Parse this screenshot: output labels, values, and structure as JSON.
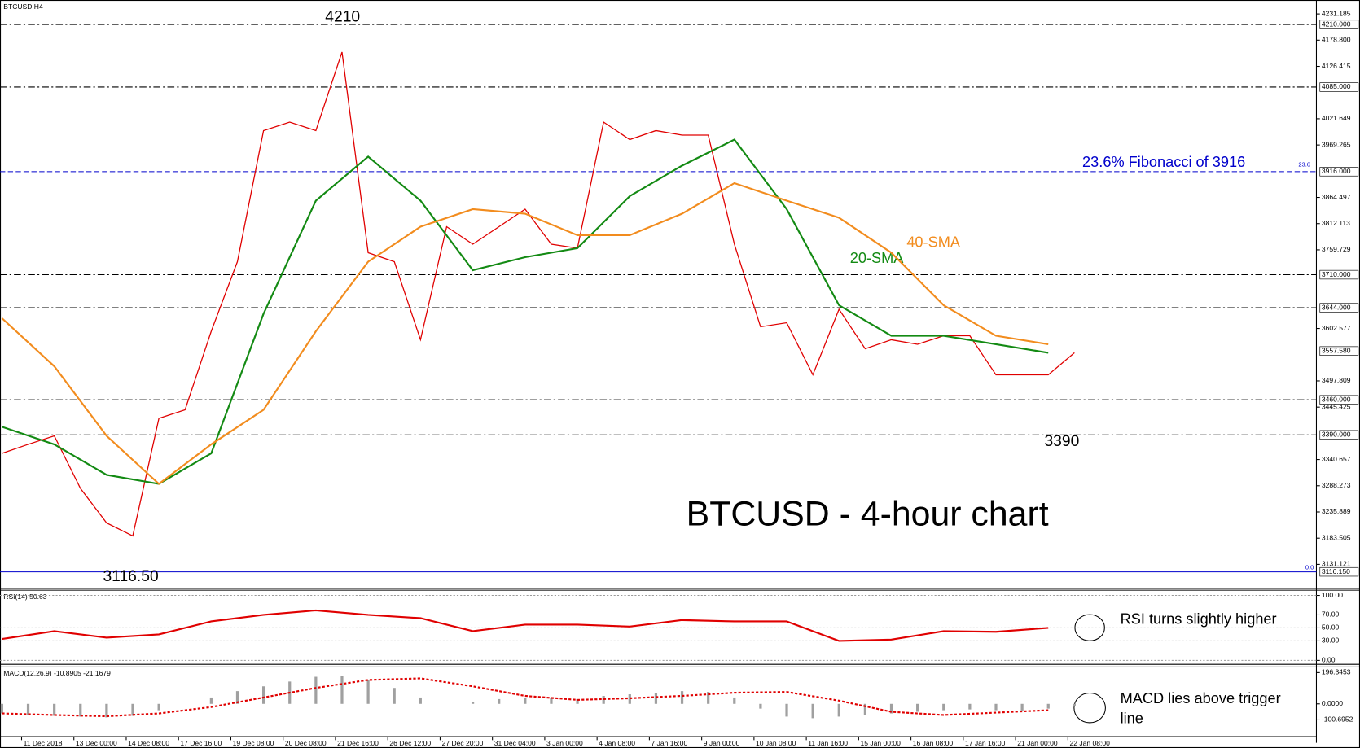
{
  "chart_data": [
    {
      "type": "line",
      "title": "BTCUSD,H4",
      "xlim": [
        -0.3,
        201
      ],
      "ylim": [
        3083,
        4259
      ],
      "yticks": [
        {
          "value": 4231.185,
          "label": "4231.185"
        },
        {
          "value": 4178.8,
          "label": "4178.800"
        },
        {
          "value": 4126.415,
          "label": "4126.415"
        },
        {
          "value": 4021.649,
          "label": "4021.649"
        },
        {
          "value": 3969.265,
          "label": "3969.265"
        },
        {
          "value": 3864.497,
          "label": "3864.497"
        },
        {
          "value": 3812.113,
          "label": "3812.113"
        },
        {
          "value": 3759.729,
          "label": "3759.729"
        },
        {
          "value": 3602.577,
          "label": "3602.577"
        },
        {
          "value": 3497.809,
          "label": "3497.809"
        },
        {
          "value": 3445.425,
          "label": "3445.425"
        },
        {
          "value": 3340.657,
          "label": "3340.657"
        },
        {
          "value": 3288.273,
          "label": "3288.273"
        },
        {
          "value": 3235.889,
          "label": "3235.889"
        },
        {
          "value": 3183.505,
          "label": "3183.505"
        },
        {
          "value": 3131.121,
          "label": "3131.121"
        }
      ],
      "levels": [
        {
          "value": 4210,
          "label": "4210.000",
          "color": "#000000",
          "style": "dashdot"
        },
        {
          "value": 4085,
          "label": "4085.000",
          "color": "#000000",
          "style": "dashdot"
        },
        {
          "value": 3916,
          "label": "3916.000",
          "color": "#0000cc",
          "style": "dash"
        },
        {
          "value": 3710,
          "label": "3710.000",
          "color": "#000000",
          "style": "dashdot"
        },
        {
          "value": 3644,
          "label": "3644.000",
          "color": "#000000",
          "style": "dashdot"
        },
        {
          "value": 3460,
          "label": "3460.000",
          "color": "#000000",
          "style": "dashdot"
        },
        {
          "value": 3390,
          "label": "3390.000",
          "color": "#000000",
          "style": "dashdot"
        },
        {
          "value": 3116.15,
          "label": "3116.150",
          "color": "#0000cc",
          "style": "solid"
        }
      ],
      "current_price": {
        "value": 3557.58,
        "label": "3557.580"
      },
      "annotations": [
        "4210",
        "3116.50",
        "3390",
        "23.6% Fibonacci of 3916",
        "BTCUSD - 4-hour chart",
        "23.6",
        "0.0"
      ],
      "x": [
        0,
        4,
        8,
        12,
        16,
        20,
        24,
        28,
        32,
        36,
        40,
        44,
        48,
        52,
        56,
        60,
        64,
        68,
        72,
        76,
        80,
        84,
        88,
        92,
        96,
        100,
        104,
        108,
        112,
        116,
        120,
        124,
        128,
        132,
        136,
        140,
        144,
        148,
        152,
        156,
        160,
        164
      ],
      "series": [
        {
          "color": "#e00000",
          "values": [
            3353,
            3371,
            3388,
            3283,
            3214,
            3188,
            3423,
            3440,
            3597,
            3736,
            3998,
            4015,
            3998,
            4155,
            3754,
            3736,
            3580,
            3806,
            3771,
            3806,
            3841,
            3771,
            3763,
            4015,
            3980,
            3998,
            3989,
            3989,
            3771,
            3606,
            3614,
            3510,
            3641,
            3562,
            3580,
            3571,
            3588,
            3588,
            3510,
            3510,
            3510,
            3554
          ]
        },
        {
          "name": "20-SMA",
          "color": "#138a13",
          "x": [
            0,
            8,
            16,
            24,
            32,
            40,
            48,
            56,
            64,
            72,
            80,
            88,
            96,
            104,
            112,
            120,
            128,
            136,
            144,
            152,
            160
          ],
          "values": [
            3406,
            3371,
            3310,
            3292,
            3353,
            3632,
            3858,
            3946,
            3858,
            3719,
            3745,
            3763,
            3867,
            3928,
            3980,
            3841,
            3649,
            3588,
            3588,
            3571,
            3554
          ]
        },
        {
          "name": "40-SMA",
          "color": "#f28c1e",
          "x": [
            0,
            8,
            16,
            24,
            32,
            40,
            48,
            56,
            64,
            72,
            80,
            88,
            96,
            104,
            112,
            120,
            128,
            136,
            144,
            152,
            160
          ],
          "values": [
            3623,
            3527,
            3388,
            3292,
            3371,
            3440,
            3597,
            3736,
            3806,
            3841,
            3832,
            3789,
            3789,
            3832,
            3893,
            3858,
            3824,
            3754,
            3649,
            3588,
            3571
          ]
        }
      ]
    },
    {
      "type": "line",
      "title": "RSI(14) 50.63",
      "grid": true,
      "xlim": [
        -0.3,
        201
      ],
      "ylim": [
        -6,
        108
      ],
      "yticks": [
        {
          "value": 100,
          "label": "100.00"
        },
        {
          "value": 70,
          "label": "70.00"
        },
        {
          "value": 50,
          "label": "50.00"
        },
        {
          "value": 30,
          "label": "30.00"
        },
        {
          "value": 0,
          "label": "0.00"
        }
      ],
      "annotations": [
        "RSI turns slightly higher"
      ],
      "x": [
        0,
        8,
        16,
        24,
        32,
        40,
        48,
        56,
        64,
        72,
        80,
        88,
        96,
        104,
        112,
        120,
        128,
        136,
        144,
        152,
        160
      ],
      "series": [
        {
          "color": "#e00000",
          "values": [
            33,
            45,
            35,
            40,
            60,
            70,
            77,
            70,
            65,
            45,
            55,
            55,
            52,
            62,
            60,
            60,
            30,
            32,
            45,
            44,
            50
          ]
        }
      ]
    },
    {
      "type": "bar",
      "title": "MACD(12,26,9) -10.8905 -21.1679",
      "xlim": [
        -0.3,
        201
      ],
      "ylim": [
        -206,
        232
      ],
      "yticks": [
        196.3453,
        {
          "value": 0,
          "label": "0.0000"
        },
        -100.6952
      ],
      "xticks": [
        {
          "value": 3,
          "label": "11 Dec 2018"
        },
        {
          "value": 11,
          "label": "13 Dec 00:00"
        },
        {
          "value": 19,
          "label": "14 Dec 08:00"
        },
        {
          "value": 27,
          "label": "17 Dec 16:00"
        },
        {
          "value": 35,
          "label": "19 Dec 08:00"
        },
        {
          "value": 43,
          "label": "20 Dec 08:00"
        },
        {
          "value": 51,
          "label": "21 Dec 16:00"
        },
        {
          "value": 59,
          "label": "26 Dec 12:00"
        },
        {
          "value": 67,
          "label": "27 Dec 20:00"
        },
        {
          "value": 75,
          "label": "31 Dec 04:00"
        },
        {
          "value": 83,
          "label": "3 Jan 00:00"
        },
        {
          "value": 91,
          "label": "4 Jan 08:00"
        },
        {
          "value": 99,
          "label": "7 Jan 16:00"
        },
        {
          "value": 107,
          "label": "9 Jan 00:00"
        },
        {
          "value": 115,
          "label": "10 Jan 08:00"
        },
        {
          "value": 123,
          "label": "11 Jan 16:00"
        },
        {
          "value": 131,
          "label": "15 Jan 00:00"
        },
        {
          "value": 139,
          "label": "16 Jan 08:00"
        },
        {
          "value": 147,
          "label": "17 Jan 16:00"
        },
        {
          "value": 155,
          "label": "21 Jan 00:00"
        },
        {
          "value": 163,
          "label": "22 Jan 08:00"
        }
      ],
      "annotations": [
        "MACD lies above trigger",
        "line"
      ],
      "x": [
        0,
        4,
        8,
        12,
        16,
        20,
        24,
        28,
        32,
        36,
        40,
        44,
        48,
        52,
        56,
        60,
        64,
        68,
        72,
        76,
        80,
        84,
        88,
        92,
        96,
        100,
        104,
        108,
        112,
        116,
        120,
        124,
        128,
        132,
        136,
        140,
        144,
        148,
        152,
        156,
        160,
        164
      ],
      "series": [
        {
          "color": "#a0a0a0",
          "values": [
            -60,
            -70,
            -75,
            -80,
            -85,
            -75,
            -40,
            0,
            40,
            80,
            110,
            140,
            170,
            175,
            150,
            100,
            40,
            0,
            10,
            30,
            40,
            35,
            30,
            50,
            60,
            70,
            80,
            75,
            40,
            -30,
            -80,
            -90,
            -80,
            -70,
            -60,
            -50,
            -40,
            -35,
            -40,
            -45,
            -30,
            -11
          ]
        },
        {
          "type": "line",
          "line_style": "dashed",
          "color": "#e00000",
          "x": [
            0,
            8,
            16,
            24,
            32,
            40,
            48,
            56,
            64,
            72,
            80,
            88,
            96,
            104,
            112,
            120,
            128,
            136,
            144,
            152,
            160
          ],
          "values": [
            -60,
            -70,
            -78,
            -60,
            -20,
            40,
            100,
            150,
            160,
            110,
            50,
            25,
            35,
            50,
            70,
            75,
            20,
            -50,
            -70,
            -55,
            -40
          ]
        }
      ]
    }
  ]
}
